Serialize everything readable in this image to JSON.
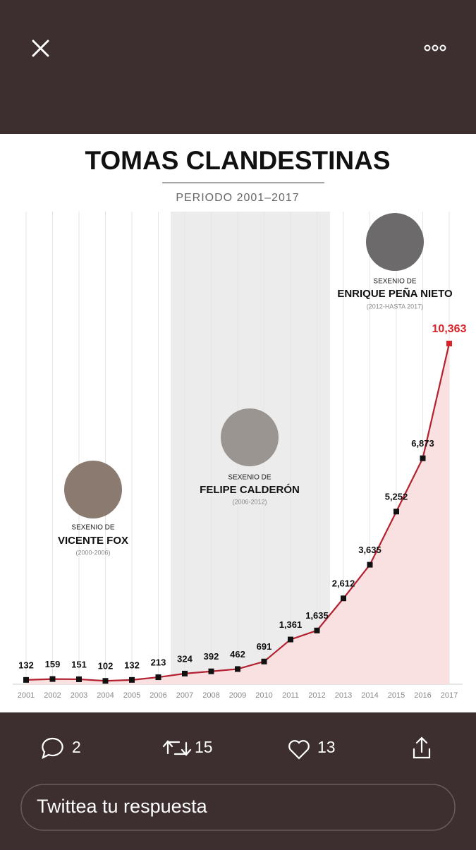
{
  "chart_data": {
    "type": "line",
    "title": "TOMAS CLANDESTINAS",
    "subtitle": "PERIODO 2001–2017",
    "categories": [
      "2001",
      "2002",
      "2003",
      "2004",
      "2005",
      "2006",
      "2007",
      "2008",
      "2009",
      "2010",
      "2011",
      "2012",
      "2013",
      "2014",
      "2015",
      "2016",
      "2017"
    ],
    "series": [
      {
        "name": "Tomas clandestinas",
        "color": "#b3202f",
        "values": [
          132,
          159,
          151,
          102,
          132,
          213,
          324,
          392,
          462,
          691,
          1361,
          1635,
          2612,
          3635,
          5252,
          6873,
          10363
        ],
        "value_labels": [
          "132",
          "159",
          "151",
          "102",
          "132",
          "213",
          "324",
          "392",
          "462",
          "691",
          "1,361",
          "1,635",
          "2,612",
          "3,635",
          "5,252",
          "6,873",
          "10,363"
        ]
      }
    ],
    "annotations": [
      {
        "label": "SEXENIO DE",
        "name": "VICENTE FOX",
        "years": "(2000-2006)"
      },
      {
        "label": "SEXENIO DE",
        "name": "FELIPE CALDERÓN",
        "years": "(2006-2012)"
      },
      {
        "label": "SEXENIO DE",
        "name": "ENRIQUE PEÑA NIETO",
        "years": "(2012-HASTA 2017)"
      }
    ]
  },
  "ui": {
    "reply_count": 2,
    "retweet_count": 15,
    "like_count": 13,
    "reply_placeholder": "Twittea tu respuesta"
  }
}
